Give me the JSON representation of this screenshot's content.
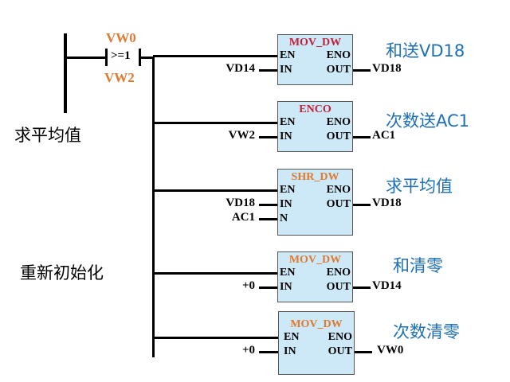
{
  "contact": {
    "top": "VW0",
    "op": ">=1",
    "bottom": "VW2"
  },
  "side_labels": [
    "求平均值",
    "重新初始化"
  ],
  "colors": {
    "title_red": "#c0203a",
    "title_orange": "#e07a30",
    "box_fill": "#cde8f7",
    "comment": "#1f6fb5",
    "contact_label": "#e07a30"
  },
  "blocks": [
    {
      "title": "MOV_DW",
      "title_color": "#c0203a",
      "pins_left": [
        "EN",
        "IN"
      ],
      "pins_right": [
        "ENO",
        "OUT"
      ],
      "inputs": [
        "VD14"
      ],
      "output": "VD18",
      "comment": "和送VD18"
    },
    {
      "title": "ENCO",
      "title_color": "#c0203a",
      "pins_left": [
        "EN",
        "IN"
      ],
      "pins_right": [
        "ENO",
        "OUT"
      ],
      "inputs": [
        "VW2"
      ],
      "output": "AC1",
      "comment": "次数送AC1"
    },
    {
      "title": "SHR_DW",
      "title_color": "#e07a30",
      "pins_left": [
        "EN",
        "IN",
        "N"
      ],
      "pins_right": [
        "ENO",
        "OUT"
      ],
      "inputs": [
        "VD18",
        "AC1"
      ],
      "output": "VD18",
      "comment": "求平均值"
    },
    {
      "title": "MOV_DW",
      "title_color": "#e07a30",
      "pins_left": [
        "EN",
        "IN"
      ],
      "pins_right": [
        "ENO",
        "OUT"
      ],
      "inputs": [
        "+0"
      ],
      "output": "VD14",
      "comment": "和清零"
    },
    {
      "title": "MOV_DW",
      "title_color": "#e07a30",
      "pins_left": [
        "EN",
        "IN"
      ],
      "pins_right": [
        "ENO",
        "OUT"
      ],
      "inputs": [
        "+0"
      ],
      "output": "VW0",
      "comment": "次数清零"
    }
  ]
}
